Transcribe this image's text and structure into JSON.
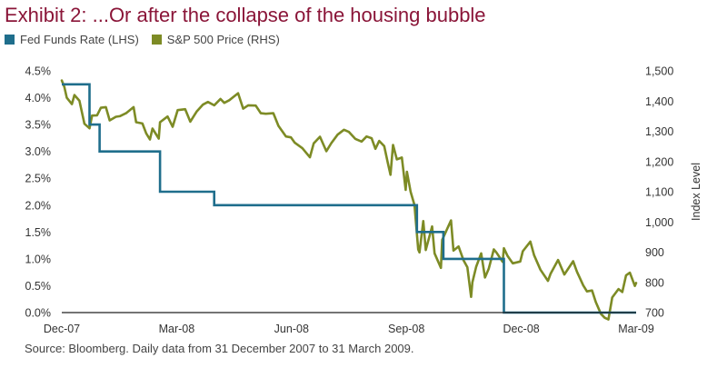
{
  "title": "Exhibit 2: ...Or after the collapse of the housing bubble",
  "source": "Source: Bloomberg. Daily data from 31 December 2007 to 31 March 2009.",
  "chart_data": {
    "type": "line",
    "x_tick_labels": [
      "Dec-07",
      "Mar-08",
      "Jun-08",
      "Sep-08",
      "Dec-08",
      "Mar-09"
    ],
    "x_range": [
      "2007-12-31",
      "2009-03-31"
    ],
    "grid": false,
    "legend_position": "top-left",
    "left_axis": {
      "label": "",
      "range": [
        0,
        4.5
      ],
      "tick_labels": [
        "0.0%",
        "0.5%",
        "1.0%",
        "1.5%",
        "2.0%",
        "2.5%",
        "3.0%",
        "3.5%",
        "4.0%",
        "4.5%"
      ]
    },
    "right_axis": {
      "label": "Index Level",
      "range": [
        700,
        1500
      ],
      "tick_labels": [
        "700",
        "800",
        "900",
        "1,000",
        "1,100",
        "1,200",
        "1,300",
        "1,400",
        "1,500"
      ]
    },
    "series": [
      {
        "name": "Fed Funds Rate (LHS)",
        "axis": "left",
        "color": "#1f6e8c",
        "step": true,
        "points": [
          [
            "2007-12-31",
            4.25
          ],
          [
            "2008-01-22",
            3.5
          ],
          [
            "2008-01-30",
            3.0
          ],
          [
            "2008-03-18",
            2.25
          ],
          [
            "2008-04-30",
            2.0
          ],
          [
            "2008-10-08",
            1.5
          ],
          [
            "2008-10-29",
            1.0
          ],
          [
            "2008-12-16",
            0.0
          ],
          [
            "2009-03-31",
            0.0
          ]
        ]
      },
      {
        "name": "S&P 500 Price (RHS)",
        "axis": "right",
        "color": "#7d8b25",
        "points": [
          [
            "2007-12-31",
            1468
          ],
          [
            "2008-01-02",
            1447
          ],
          [
            "2008-01-04",
            1411
          ],
          [
            "2008-01-08",
            1390
          ],
          [
            "2008-01-10",
            1420
          ],
          [
            "2008-01-14",
            1401
          ],
          [
            "2008-01-18",
            1325
          ],
          [
            "2008-01-22",
            1310
          ],
          [
            "2008-01-24",
            1352
          ],
          [
            "2008-01-28",
            1353
          ],
          [
            "2008-01-31",
            1378
          ],
          [
            "2008-02-04",
            1380
          ],
          [
            "2008-02-07",
            1336
          ],
          [
            "2008-02-12",
            1348
          ],
          [
            "2008-02-15",
            1350
          ],
          [
            "2008-02-20",
            1360
          ],
          [
            "2008-02-26",
            1380
          ],
          [
            "2008-02-28",
            1330
          ],
          [
            "2008-03-04",
            1326
          ],
          [
            "2008-03-07",
            1293
          ],
          [
            "2008-03-10",
            1273
          ],
          [
            "2008-03-12",
            1309
          ],
          [
            "2008-03-17",
            1276
          ],
          [
            "2008-03-18",
            1330
          ],
          [
            "2008-03-24",
            1349
          ],
          [
            "2008-03-28",
            1315
          ],
          [
            "2008-04-01",
            1370
          ],
          [
            "2008-04-07",
            1373
          ],
          [
            "2008-04-11",
            1332
          ],
          [
            "2008-04-16",
            1365
          ],
          [
            "2008-04-21",
            1388
          ],
          [
            "2008-04-25",
            1397
          ],
          [
            "2008-04-30",
            1386
          ],
          [
            "2008-05-05",
            1407
          ],
          [
            "2008-05-08",
            1394
          ],
          [
            "2008-05-12",
            1403
          ],
          [
            "2008-05-19",
            1426
          ],
          [
            "2008-05-23",
            1375
          ],
          [
            "2008-05-27",
            1386
          ],
          [
            "2008-06-02",
            1385
          ],
          [
            "2008-06-06",
            1360
          ],
          [
            "2008-06-10",
            1358
          ],
          [
            "2008-06-16",
            1360
          ],
          [
            "2008-06-20",
            1318
          ],
          [
            "2008-06-26",
            1283
          ],
          [
            "2008-06-30",
            1280
          ],
          [
            "2008-07-03",
            1262
          ],
          [
            "2008-07-09",
            1244
          ],
          [
            "2008-07-15",
            1214
          ],
          [
            "2008-07-18",
            1260
          ],
          [
            "2008-07-23",
            1282
          ],
          [
            "2008-07-28",
            1234
          ],
          [
            "2008-08-01",
            1261
          ],
          [
            "2008-08-06",
            1289
          ],
          [
            "2008-08-11",
            1305
          ],
          [
            "2008-08-15",
            1298
          ],
          [
            "2008-08-20",
            1275
          ],
          [
            "2008-08-25",
            1266
          ],
          [
            "2008-08-29",
            1283
          ],
          [
            "2008-09-02",
            1277
          ],
          [
            "2008-09-05",
            1242
          ],
          [
            "2008-09-08",
            1268
          ],
          [
            "2008-09-12",
            1251
          ],
          [
            "2008-09-15",
            1192
          ],
          [
            "2008-09-17",
            1156
          ],
          [
            "2008-09-19",
            1255
          ],
          [
            "2008-09-22",
            1207
          ],
          [
            "2008-09-26",
            1213
          ],
          [
            "2008-09-29",
            1106
          ],
          [
            "2008-09-30",
            1166
          ],
          [
            "2008-10-03",
            1099
          ],
          [
            "2008-10-06",
            1056
          ],
          [
            "2008-10-09",
            909
          ],
          [
            "2008-10-10",
            899
          ],
          [
            "2008-10-13",
            1003
          ],
          [
            "2008-10-15",
            907
          ],
          [
            "2008-10-20",
            985
          ],
          [
            "2008-10-22",
            896
          ],
          [
            "2008-10-27",
            848
          ],
          [
            "2008-10-28",
            941
          ],
          [
            "2008-10-31",
            968
          ],
          [
            "2008-11-04",
            1005
          ],
          [
            "2008-11-06",
            905
          ],
          [
            "2008-11-10",
            919
          ],
          [
            "2008-11-14",
            873
          ],
          [
            "2008-11-17",
            850
          ],
          [
            "2008-11-20",
            752
          ],
          [
            "2008-11-21",
            800
          ],
          [
            "2008-11-24",
            852
          ],
          [
            "2008-11-28",
            896
          ],
          [
            "2008-12-01",
            816
          ],
          [
            "2008-12-04",
            845
          ],
          [
            "2008-12-08",
            909
          ],
          [
            "2008-12-10",
            899
          ],
          [
            "2008-12-15",
            868
          ],
          [
            "2008-12-16",
            913
          ],
          [
            "2008-12-19",
            887
          ],
          [
            "2008-12-23",
            863
          ],
          [
            "2008-12-29",
            869
          ],
          [
            "2008-12-31",
            903
          ],
          [
            "2009-01-06",
            935
          ],
          [
            "2009-01-09",
            890
          ],
          [
            "2009-01-14",
            842
          ],
          [
            "2009-01-20",
            805
          ],
          [
            "2009-01-22",
            828
          ],
          [
            "2009-01-28",
            874
          ],
          [
            "2009-02-02",
            826
          ],
          [
            "2009-02-09",
            870
          ],
          [
            "2009-02-12",
            835
          ],
          [
            "2009-02-17",
            790
          ],
          [
            "2009-02-20",
            770
          ],
          [
            "2009-02-24",
            773
          ],
          [
            "2009-02-27",
            735
          ],
          [
            "2009-03-03",
            696
          ],
          [
            "2009-03-06",
            683
          ],
          [
            "2009-03-09",
            677
          ],
          [
            "2009-03-12",
            750
          ],
          [
            "2009-03-17",
            778
          ],
          [
            "2009-03-20",
            768
          ],
          [
            "2009-03-23",
            823
          ],
          [
            "2009-03-26",
            832
          ],
          [
            "2009-03-30",
            788
          ],
          [
            "2009-03-31",
            798
          ]
        ]
      }
    ]
  }
}
